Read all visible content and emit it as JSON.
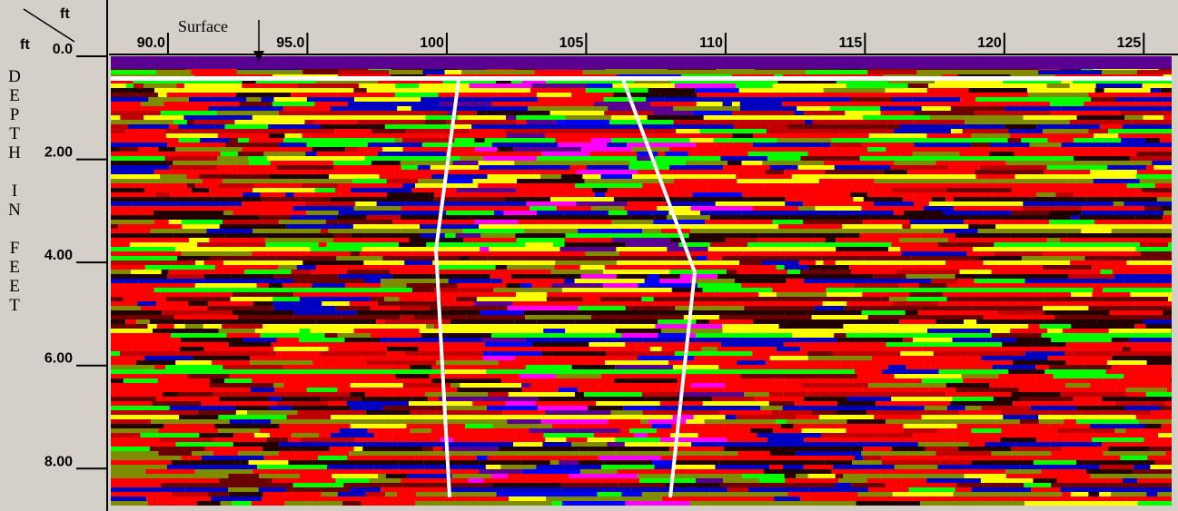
{
  "chart_data": {
    "type": "radargram",
    "x_unit": "ft",
    "y_unit": "ft",
    "y_label": "DEPTH IN FEET",
    "annotation": "Surface",
    "xlim": [
      87.95,
      126
    ],
    "xticks": [
      {
        "value": 90,
        "label": "90.0"
      },
      {
        "value": 95,
        "label": "95.0"
      },
      100,
      105,
      110,
      115,
      120,
      125
    ],
    "ylim": [
      0,
      8.7
    ],
    "yticks": [
      {
        "value": 0,
        "label": "0.0"
      },
      {
        "value": 2,
        "label": "2.00"
      },
      {
        "value": 4,
        "label": "4.00"
      },
      {
        "value": 6,
        "label": "6.00"
      },
      {
        "value": 8,
        "label": "8.00"
      }
    ]
  }
}
